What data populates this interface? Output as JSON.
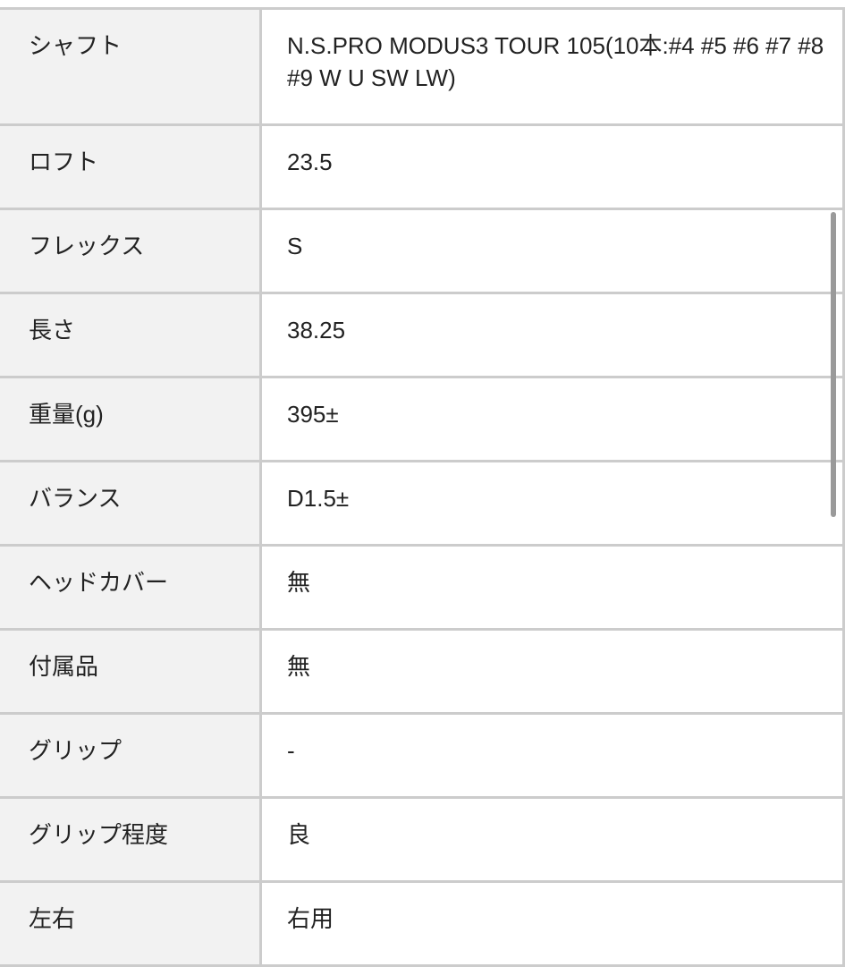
{
  "rows": [
    {
      "label": "シャフト",
      "value": "N.S.PRO MODUS3 TOUR 105(10本:#4 #5 #6 #7 #8 #9 W U SW LW)"
    },
    {
      "label": "ロフト",
      "value": "23.5"
    },
    {
      "label": "フレックス",
      "value": "S"
    },
    {
      "label": "長さ",
      "value": "38.25"
    },
    {
      "label": "重量(g)",
      "value": "395±"
    },
    {
      "label": "バランス",
      "value": "D1.5±"
    },
    {
      "label": "ヘッドカバー",
      "value": "無"
    },
    {
      "label": "付属品",
      "value": "無"
    },
    {
      "label": "グリップ",
      "value": "-"
    },
    {
      "label": "グリップ程度",
      "value": "良"
    },
    {
      "label": "左右",
      "value": "右用"
    }
  ]
}
